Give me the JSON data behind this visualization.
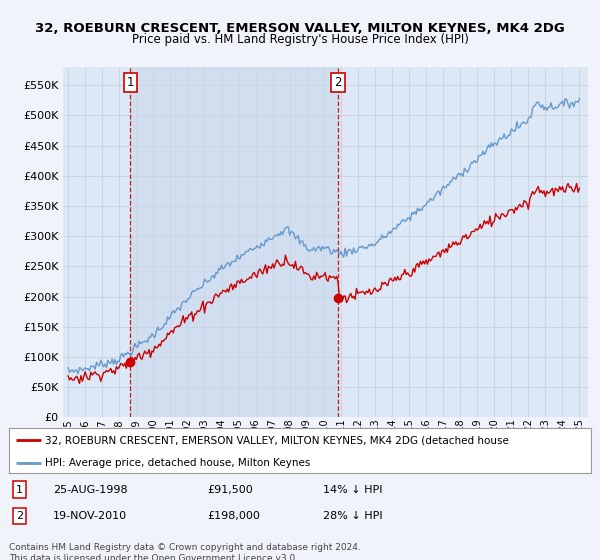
{
  "title": "32, ROEBURN CRESCENT, EMERSON VALLEY, MILTON KEYNES, MK4 2DG",
  "subtitle": "Price paid vs. HM Land Registry's House Price Index (HPI)",
  "bg_color": "#f0f4fa",
  "plot_bg": "#dce8f5",
  "shade_color": "#c8d8ee",
  "grid_color": "#c8d0dc",
  "red_line_color": "#cc0000",
  "blue_line_color": "#6699cc",
  "sale1_year": 1998.65,
  "sale2_year": 2010.84,
  "sale1_price": 91500,
  "sale2_price": 198000,
  "ylim": [
    0,
    580000
  ],
  "ytick_vals": [
    0,
    50000,
    100000,
    150000,
    200000,
    250000,
    300000,
    350000,
    400000,
    450000,
    500000,
    550000
  ],
  "xlim_start": 1994.7,
  "xlim_end": 2025.5,
  "legend_line1": "32, ROEBURN CRESCENT, EMERSON VALLEY, MILTON KEYNES, MK4 2DG (detached house",
  "legend_line2": "HPI: Average price, detached house, Milton Keynes",
  "sale1_date": "25-AUG-1998",
  "sale1_str": "£91,500",
  "sale1_hpi": "14% ↓ HPI",
  "sale2_date": "19-NOV-2010",
  "sale2_str": "£198,000",
  "sale2_hpi": "28% ↓ HPI",
  "footer": "Contains HM Land Registry data © Crown copyright and database right 2024.\nThis data is licensed under the Open Government Licence v3.0."
}
